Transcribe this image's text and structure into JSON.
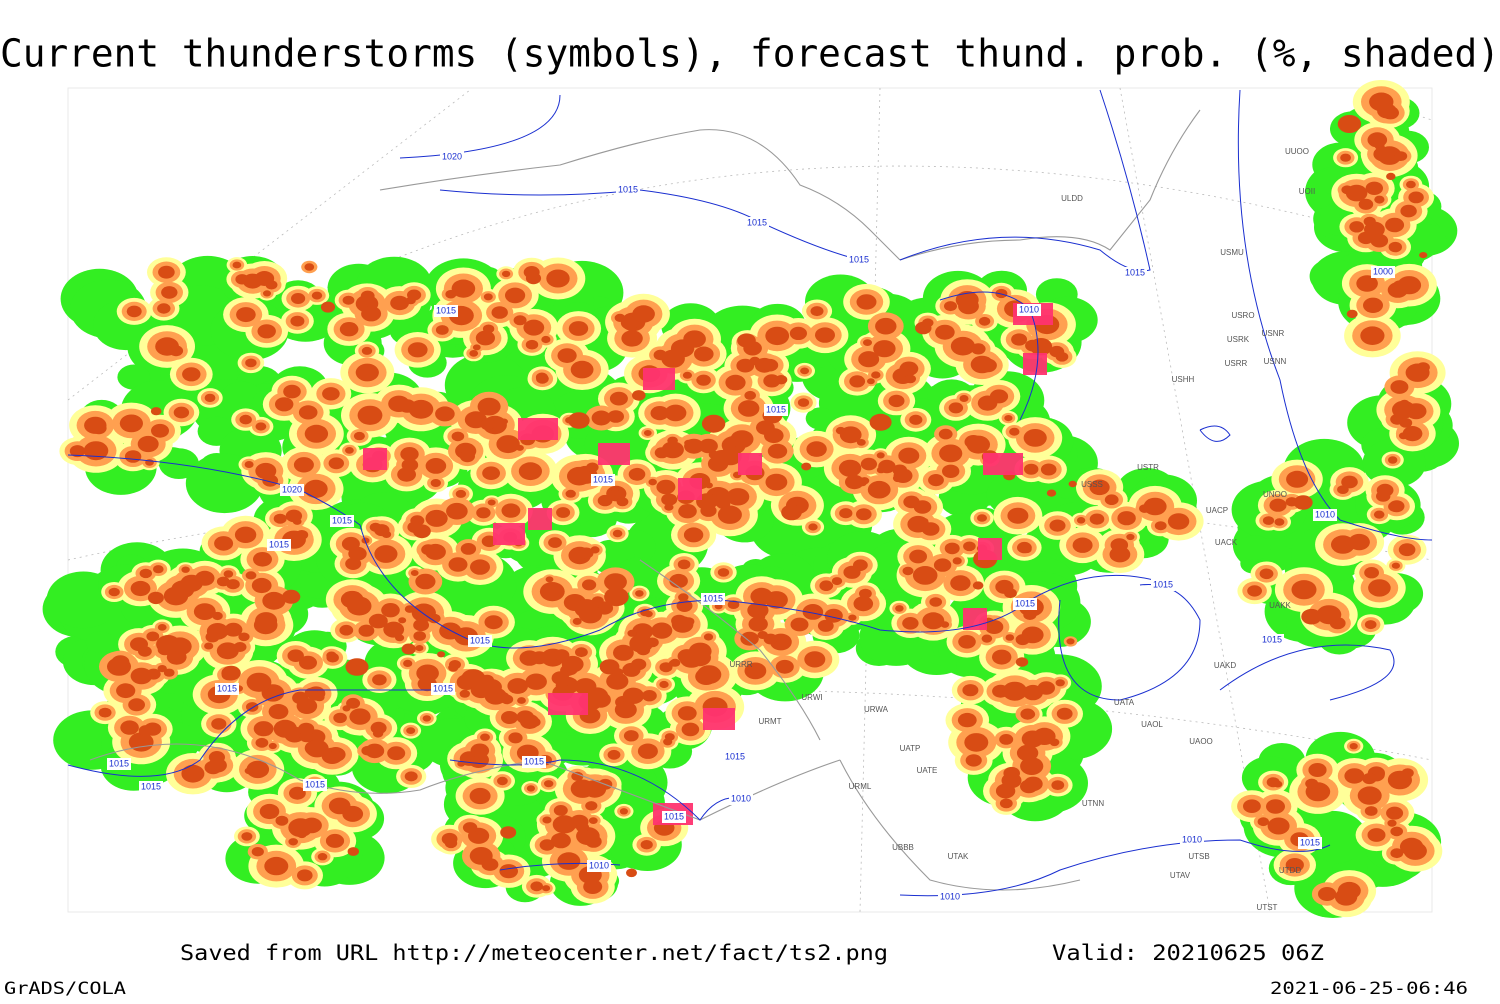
{
  "title": "Current thunderstorms (symbols), forecast thund. prob. (%, shaded)",
  "footer": {
    "source": "Saved from URL http://meteocenter.net/fact/ts2.png",
    "valid": "Valid: 20210625 06Z",
    "software": "GrADS/COLA",
    "timestamp": "2021-06-25-06:46"
  },
  "isobar_labels": [
    1020,
    1015,
    1015,
    1015,
    1015,
    1000,
    1010,
    1015,
    1015,
    1015,
    1020,
    1015,
    1015,
    1010,
    1015,
    1015,
    1015,
    1015,
    1015,
    1015,
    1015,
    1015,
    1015,
    1015,
    1015,
    1015,
    1010,
    1015,
    1010,
    1010,
    1010,
    1015
  ],
  "station_labels": [
    "ULDD",
    "USMU",
    "USRO",
    "USRK",
    "USNR",
    "USRR",
    "USNN",
    "USHH",
    "USTR",
    "USSS",
    "UNOO",
    "UACP",
    "UACK",
    "UAKK",
    "UAKD",
    "UATA",
    "UAOL",
    "UAOO",
    "UTNN",
    "UTSB",
    "UTAV",
    "UTST",
    "UTDD",
    "UATP",
    "UATE",
    "UTAK",
    "UBBB",
    "URML",
    "URWI",
    "URWA",
    "URRR",
    "URMT",
    "UUOO",
    "UOII"
  ]
}
